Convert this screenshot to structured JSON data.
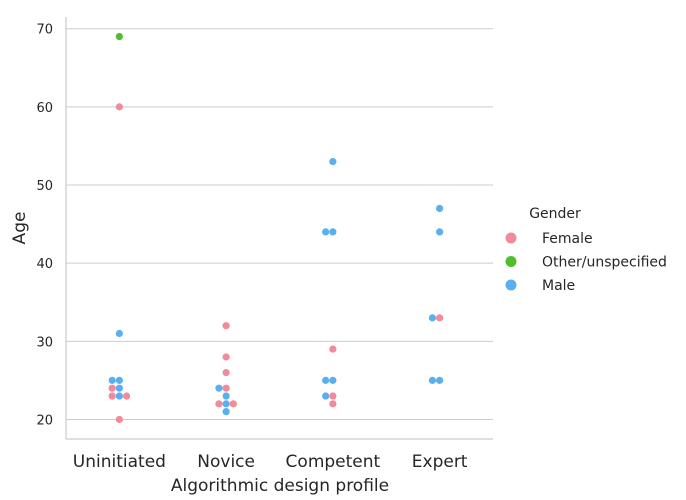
{
  "chart_data": {
    "type": "scatter",
    "title": "",
    "xlabel": "Algorithmic design profile",
    "ylabel": "Age",
    "categories": [
      "Uninitiated",
      "Novice",
      "Competent",
      "Expert"
    ],
    "yticks": [
      20,
      30,
      40,
      50,
      60,
      70
    ],
    "ylim": [
      17.5,
      71.5
    ],
    "grid": "horizontal",
    "legend": {
      "title": "Gender",
      "placement": "right",
      "entries": [
        {
          "name": "Female",
          "color": "#f38a99"
        },
        {
          "name": "Other/unspecified",
          "color": "#50be2d"
        },
        {
          "name": "Male",
          "color": "#5aaff0"
        }
      ]
    },
    "points": [
      {
        "category": "Uninitiated",
        "gender": "Female",
        "age": 20,
        "offset": 0
      },
      {
        "category": "Uninitiated",
        "gender": "Female",
        "age": 23,
        "offset": -1
      },
      {
        "category": "Uninitiated",
        "gender": "Male",
        "age": 23,
        "offset": 0
      },
      {
        "category": "Uninitiated",
        "gender": "Female",
        "age": 23,
        "offset": 1
      },
      {
        "category": "Uninitiated",
        "gender": "Female",
        "age": 24,
        "offset": -1
      },
      {
        "category": "Uninitiated",
        "gender": "Male",
        "age": 24,
        "offset": 0
      },
      {
        "category": "Uninitiated",
        "gender": "Male",
        "age": 25,
        "offset": -1
      },
      {
        "category": "Uninitiated",
        "gender": "Male",
        "age": 25,
        "offset": 0
      },
      {
        "category": "Uninitiated",
        "gender": "Male",
        "age": 31,
        "offset": 0
      },
      {
        "category": "Uninitiated",
        "gender": "Female",
        "age": 60,
        "offset": 0
      },
      {
        "category": "Uninitiated",
        "gender": "Other/unspecified",
        "age": 69,
        "offset": 0
      },
      {
        "category": "Novice",
        "gender": "Male",
        "age": 21,
        "offset": 0
      },
      {
        "category": "Novice",
        "gender": "Female",
        "age": 22,
        "offset": -1
      },
      {
        "category": "Novice",
        "gender": "Male",
        "age": 22,
        "offset": 0
      },
      {
        "category": "Novice",
        "gender": "Female",
        "age": 22,
        "offset": 1
      },
      {
        "category": "Novice",
        "gender": "Male",
        "age": 23,
        "offset": 0
      },
      {
        "category": "Novice",
        "gender": "Male",
        "age": 24,
        "offset": -1
      },
      {
        "category": "Novice",
        "gender": "Female",
        "age": 24,
        "offset": 0
      },
      {
        "category": "Novice",
        "gender": "Female",
        "age": 26,
        "offset": 0
      },
      {
        "category": "Novice",
        "gender": "Female",
        "age": 28,
        "offset": 0
      },
      {
        "category": "Novice",
        "gender": "Female",
        "age": 32,
        "offset": 0
      },
      {
        "category": "Competent",
        "gender": "Female",
        "age": 22,
        "offset": 0
      },
      {
        "category": "Competent",
        "gender": "Male",
        "age": 23,
        "offset": -1
      },
      {
        "category": "Competent",
        "gender": "Female",
        "age": 23,
        "offset": 0
      },
      {
        "category": "Competent",
        "gender": "Male",
        "age": 25,
        "offset": -1
      },
      {
        "category": "Competent",
        "gender": "Male",
        "age": 25,
        "offset": 0
      },
      {
        "category": "Competent",
        "gender": "Female",
        "age": 29,
        "offset": 0
      },
      {
        "category": "Competent",
        "gender": "Male",
        "age": 44,
        "offset": -1
      },
      {
        "category": "Competent",
        "gender": "Male",
        "age": 44,
        "offset": 0
      },
      {
        "category": "Competent",
        "gender": "Male",
        "age": 53,
        "offset": 0
      },
      {
        "category": "Expert",
        "gender": "Male",
        "age": 25,
        "offset": -1
      },
      {
        "category": "Expert",
        "gender": "Male",
        "age": 25,
        "offset": 0
      },
      {
        "category": "Expert",
        "gender": "Male",
        "age": 33,
        "offset": -1
      },
      {
        "category": "Expert",
        "gender": "Female",
        "age": 33,
        "offset": 0
      },
      {
        "category": "Expert",
        "gender": "Male",
        "age": 44,
        "offset": 0
      },
      {
        "category": "Expert",
        "gender": "Male",
        "age": 47,
        "offset": 0
      }
    ]
  }
}
